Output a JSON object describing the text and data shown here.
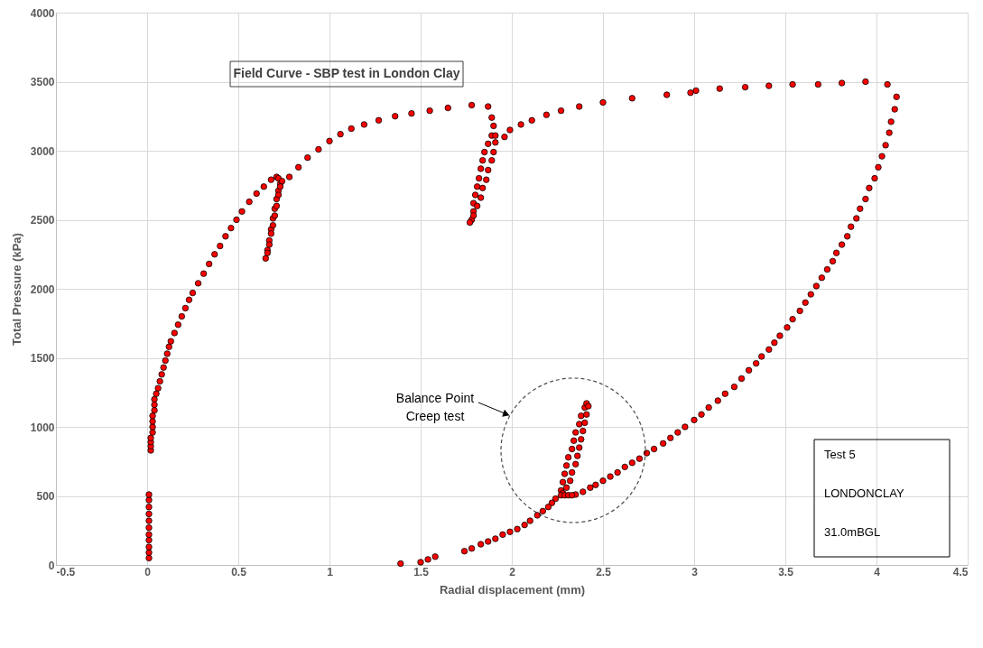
{
  "chart_data": {
    "type": "scatter",
    "title": "Field Curve - SBP test in London Clay",
    "xlabel": "Radial displacement (mm)",
    "ylabel": "Total Pressure (kPa)",
    "annotations": [
      "Balance Point\nCreep test",
      "Test 5",
      "LONDONCLAY",
      "31.0mBGL"
    ],
    "x": [
      0.01,
      0.01,
      0.01,
      0.01,
      0.01,
      0.01,
      0.01,
      0.01,
      0.01,
      0.01,
      0.01,
      0.02,
      0.02,
      0.02,
      0.02,
      0.03,
      0.03,
      0.03,
      0.03,
      0.04,
      0.04,
      0.04,
      0.05,
      0.06,
      0.07,
      0.08,
      0.09,
      0.1,
      0.11,
      0.12,
      0.13,
      0.15,
      0.17,
      0.19,
      0.21,
      0.23,
      0.25,
      0.28,
      0.31,
      0.34,
      0.37,
      0.4,
      0.43,
      0.46,
      0.49,
      0.52,
      0.56,
      0.6,
      0.64,
      0.68,
      0.71,
      0.72,
      0.73,
      0.72,
      0.71,
      0.7,
      0.69,
      0.68,
      0.67,
      0.66,
      0.65,
      0.66,
      0.67,
      0.68,
      0.69,
      0.7,
      0.71,
      0.72,
      0.73,
      0.74,
      0.78,
      0.83,
      0.88,
      0.94,
      1.0,
      1.06,
      1.12,
      1.19,
      1.27,
      1.36,
      1.45,
      1.55,
      1.65,
      1.78,
      1.87,
      1.89,
      1.9,
      1.89,
      1.87,
      1.85,
      1.84,
      1.83,
      1.82,
      1.81,
      1.8,
      1.79,
      1.79,
      1.78,
      1.77,
      1.79,
      1.81,
      1.83,
      1.84,
      1.86,
      1.87,
      1.89,
      1.9,
      1.91,
      1.91,
      1.96,
      1.99,
      2.05,
      2.11,
      2.19,
      2.27,
      2.37,
      2.5,
      2.66,
      2.85,
      2.98,
      3.01,
      3.14,
      3.28,
      3.41,
      3.54,
      3.68,
      3.81,
      3.94,
      4.06,
      4.11,
      4.1,
      4.08,
      4.07,
      4.05,
      4.03,
      4.01,
      3.99,
      3.96,
      3.94,
      3.91,
      3.89,
      3.86,
      3.84,
      3.81,
      3.78,
      3.76,
      3.73,
      3.7,
      3.67,
      3.64,
      3.61,
      3.58,
      3.54,
      3.51,
      3.47,
      3.44,
      3.41,
      3.37,
      3.34,
      3.3,
      3.26,
      3.22,
      3.17,
      3.13,
      3.08,
      3.04,
      3.0,
      2.95,
      2.91,
      2.87,
      2.83,
      2.78,
      2.74,
      2.7,
      2.66,
      2.62,
      2.58,
      2.54,
      2.5,
      2.46,
      2.43,
      2.39,
      2.35,
      2.24,
      2.22,
      2.2,
      2.17,
      2.14,
      2.1,
      2.07,
      2.03,
      1.99,
      1.95,
      1.91,
      1.87,
      1.83,
      1.78,
      1.74,
      1.58,
      1.54,
      1.5,
      1.39,
      2.27,
      2.28,
      2.29,
      2.3,
      2.31,
      2.33,
      2.34,
      2.35,
      2.37,
      2.38,
      2.4,
      2.41,
      2.42,
      2.41,
      2.4,
      2.39,
      2.38,
      2.37,
      2.36,
      2.35,
      2.33,
      2.32,
      2.3,
      2.28,
      2.27,
      2.29,
      2.31,
      2.33
    ],
    "series": [
      {
        "color": "#ff0000",
        "values": [
          50,
          90,
          130,
          180,
          220,
          270,
          320,
          370,
          420,
          470,
          510,
          830,
          860,
          890,
          920,
          960,
          1000,
          1040,
          1080,
          1120,
          1160,
          1200,
          1240,
          1280,
          1330,
          1380,
          1430,
          1480,
          1530,
          1580,
          1620,
          1680,
          1740,
          1800,
          1860,
          1920,
          1970,
          2040,
          2110,
          2180,
          2250,
          2310,
          2380,
          2440,
          2500,
          2560,
          2630,
          2690,
          2740,
          2790,
          2810,
          2800,
          2760,
          2710,
          2650,
          2580,
          2510,
          2430,
          2350,
          2280,
          2220,
          2260,
          2320,
          2400,
          2460,
          2530,
          2600,
          2680,
          2740,
          2780,
          2810,
          2880,
          2950,
          3010,
          3070,
          3120,
          3160,
          3190,
          3220,
          3250,
          3270,
          3290,
          3310,
          3330,
          3320,
          3240,
          3180,
          3110,
          3050,
          2990,
          2930,
          2870,
          2800,
          2740,
          2680,
          2620,
          2560,
          2500,
          2480,
          2530,
          2600,
          2660,
          2730,
          2790,
          2860,
          2930,
          2990,
          3060,
          3110,
          3100,
          3150,
          3190,
          3220,
          3260,
          3290,
          3320,
          3350,
          3380,
          3405,
          3420,
          3435,
          3450,
          3460,
          3470,
          3480,
          3480,
          3490,
          3500,
          3480,
          3390,
          3300,
          3210,
          3130,
          3040,
          2960,
          2880,
          2800,
          2730,
          2650,
          2580,
          2510,
          2450,
          2380,
          2320,
          2260,
          2200,
          2140,
          2080,
          2020,
          1960,
          1900,
          1840,
          1780,
          1720,
          1660,
          1610,
          1560,
          1510,
          1460,
          1410,
          1350,
          1290,
          1240,
          1190,
          1140,
          1090,
          1050,
          1000,
          960,
          920,
          880,
          840,
          810,
          770,
          740,
          710,
          670,
          640,
          610,
          580,
          560,
          530,
          510,
          480,
          450,
          420,
          390,
          360,
          320,
          290,
          260,
          240,
          220,
          190,
          170,
          150,
          120,
          100,
          60,
          40,
          20,
          10,
          540,
          600,
          660,
          720,
          780,
          840,
          900,
          960,
          1020,
          1080,
          1140,
          1170,
          1150,
          1090,
          1030,
          970,
          910,
          850,
          790,
          730,
          670,
          610,
          560,
          520,
          505,
          505,
          505,
          505
        ]
      }
    ],
    "xlim": [
      -0.5,
      4.5
    ],
    "ylim": [
      0,
      4000
    ],
    "xticks": [
      -0.5,
      0,
      0.5,
      1,
      1.5,
      2,
      2.5,
      3,
      3.5,
      4,
      4.5
    ],
    "yticks": [
      0,
      500,
      1000,
      1500,
      2000,
      2500,
      3000,
      3500,
      4000
    ],
    "grid": true,
    "marker": "circle"
  }
}
